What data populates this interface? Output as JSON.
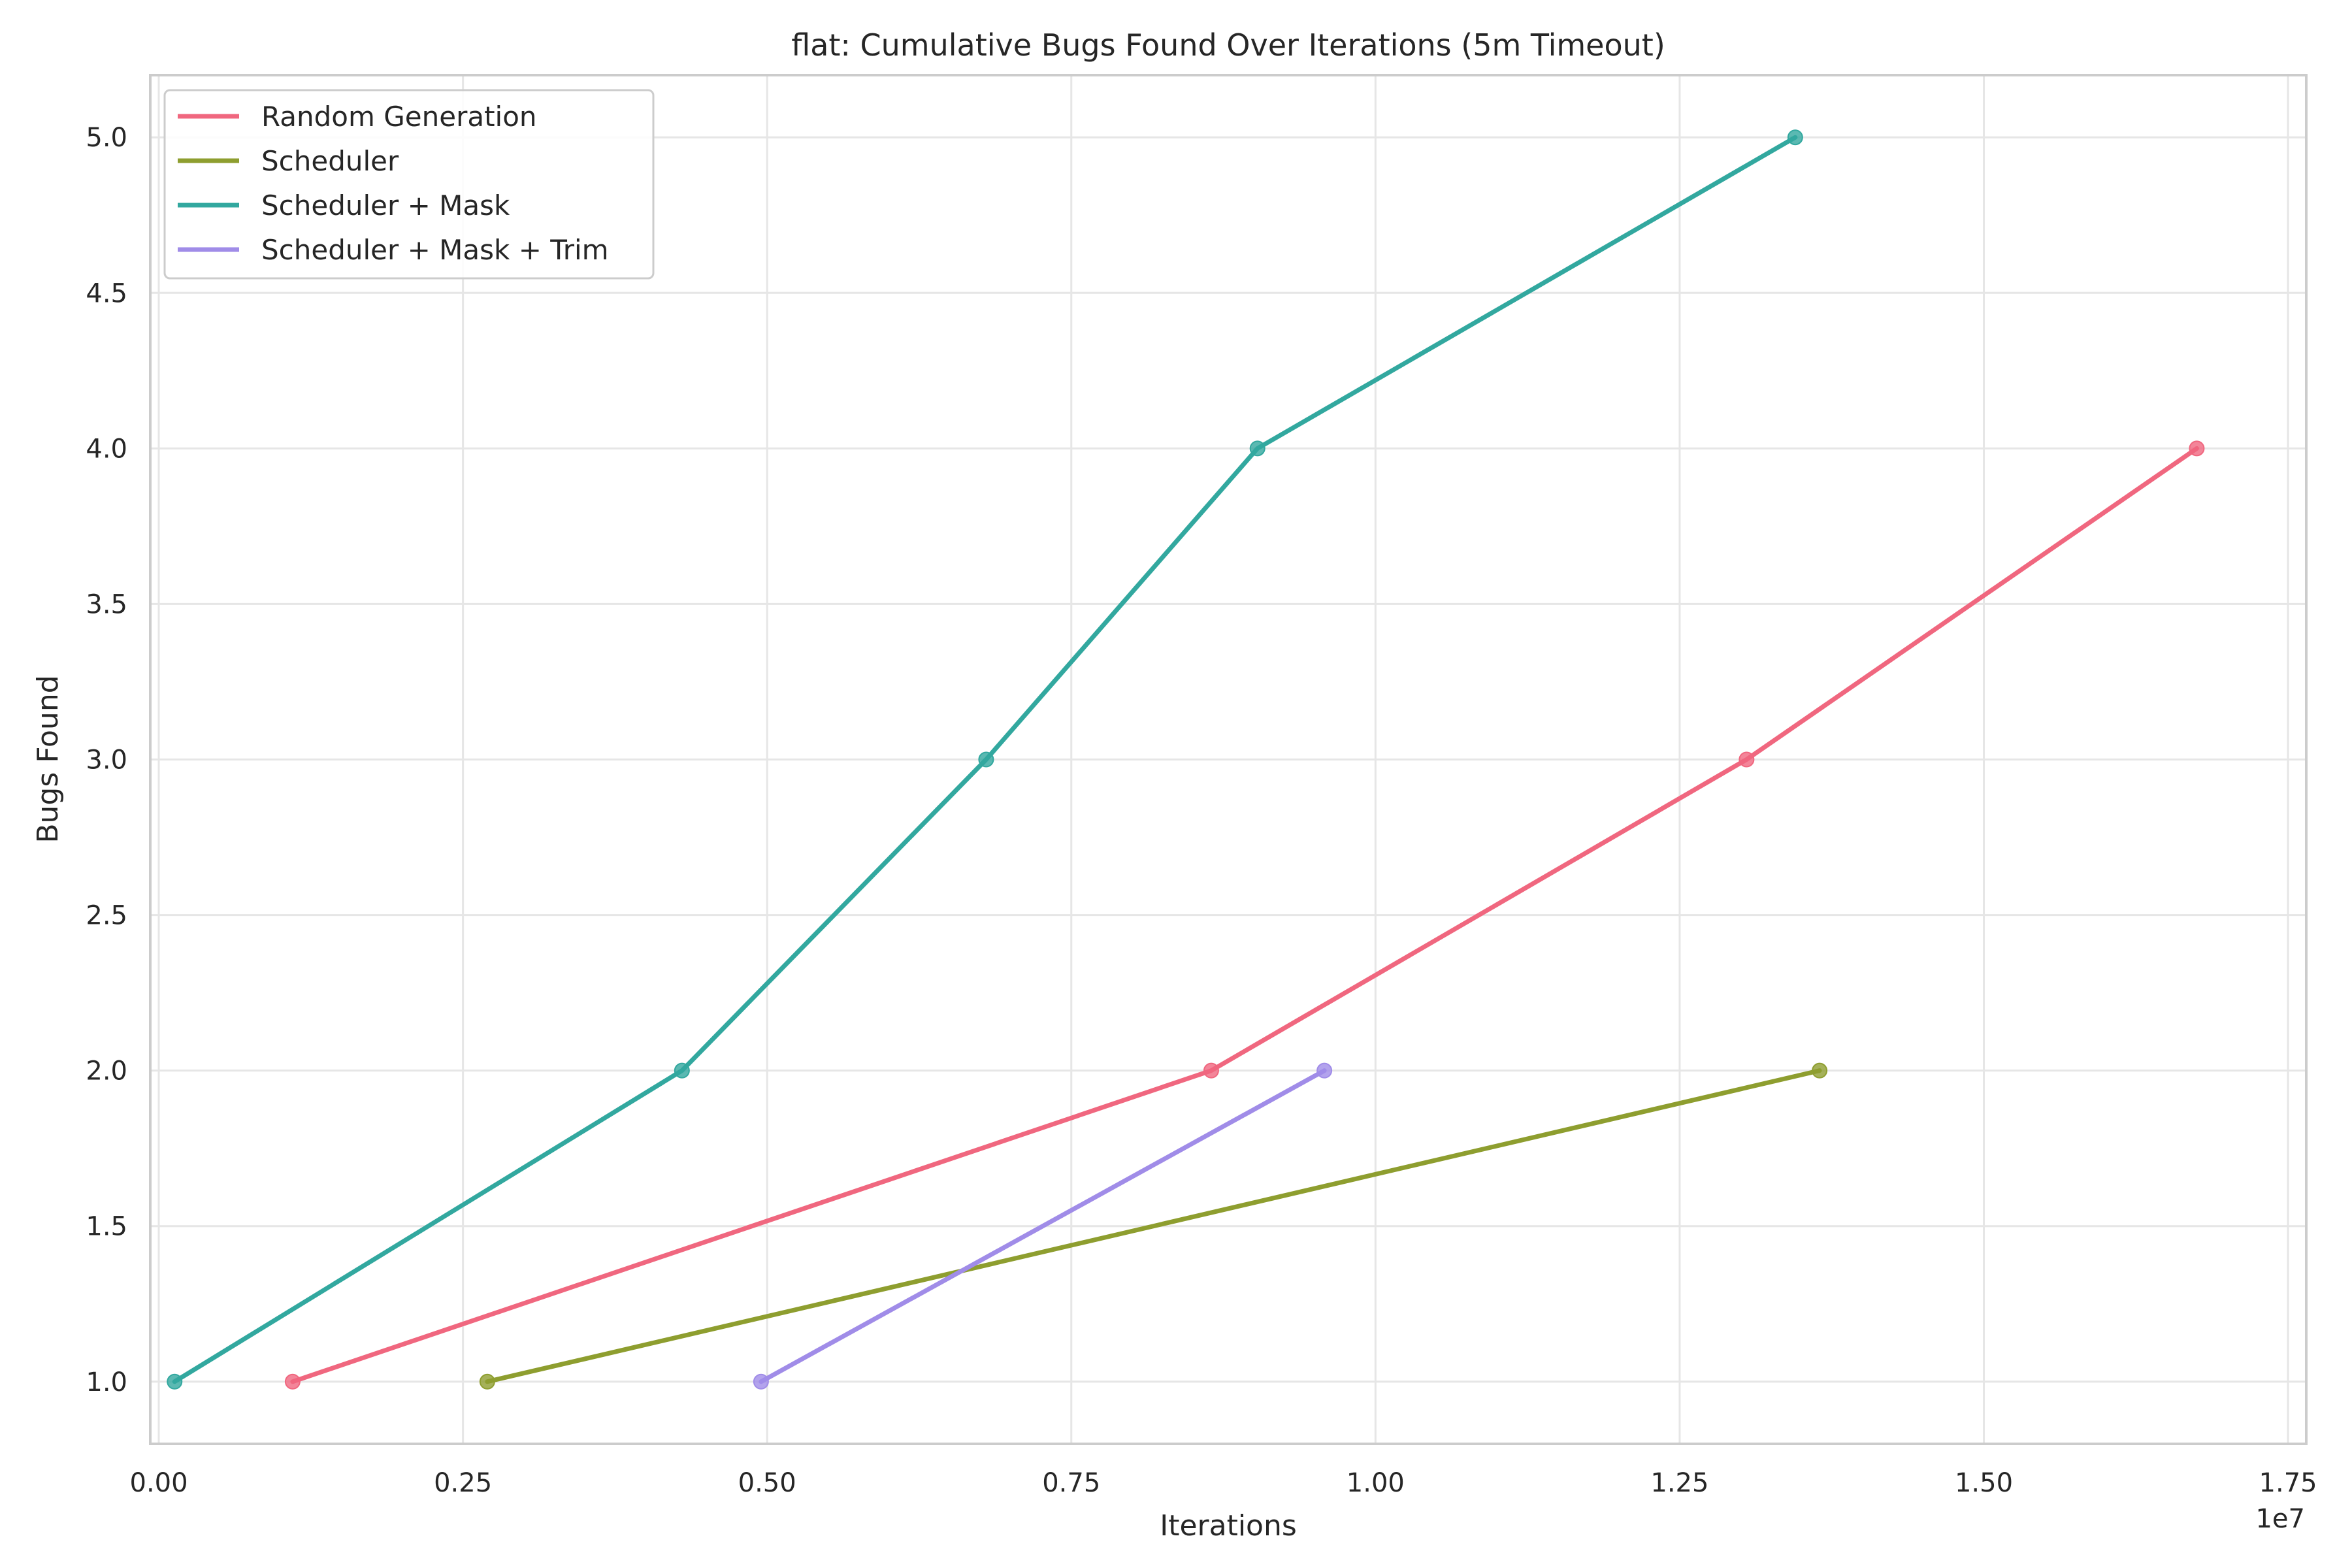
{
  "chart_data": {
    "type": "line",
    "title": "flat: Cumulative Bugs Found Over Iterations (5m Timeout)",
    "xlabel": "Iterations",
    "ylabel": "Bugs Found",
    "x_offset_label": "1e7",
    "xlim": [
      -70000,
      17650000
    ],
    "ylim": [
      0.8,
      5.2
    ],
    "xticks": [
      0,
      2500000,
      5000000,
      7500000,
      10000000,
      12500000,
      15000000,
      17500000
    ],
    "xtick_labels": [
      "0.00",
      "0.25",
      "0.50",
      "0.75",
      "1.00",
      "1.25",
      "1.50",
      "1.75"
    ],
    "yticks": [
      1.0,
      1.5,
      2.0,
      2.5,
      3.0,
      3.5,
      4.0,
      4.5,
      5.0
    ],
    "ytick_labels": [
      "1.0",
      "1.5",
      "2.0",
      "2.5",
      "3.0",
      "3.5",
      "4.0",
      "4.5",
      "5.0"
    ],
    "grid": true,
    "legend_position": "top-left",
    "series": [
      {
        "name": "Random Generation",
        "color": "#f0677f",
        "x": [
          1100000,
          8650000,
          13050000,
          16750000
        ],
        "y": [
          1,
          2,
          3,
          4
        ]
      },
      {
        "name": "Scheduler",
        "color": "#8e9e2f",
        "x": [
          2700000,
          13650000
        ],
        "y": [
          1,
          2
        ]
      },
      {
        "name": "Scheduler + Mask",
        "color": "#32a89f",
        "x": [
          130000,
          4300000,
          6800000,
          9030000,
          13450000
        ],
        "y": [
          1,
          2,
          3,
          4,
          5
        ]
      },
      {
        "name": "Scheduler + Mask + Trim",
        "color": "#a08ce8",
        "x": [
          4950000,
          9580000
        ],
        "y": [
          1,
          2
        ]
      }
    ]
  }
}
